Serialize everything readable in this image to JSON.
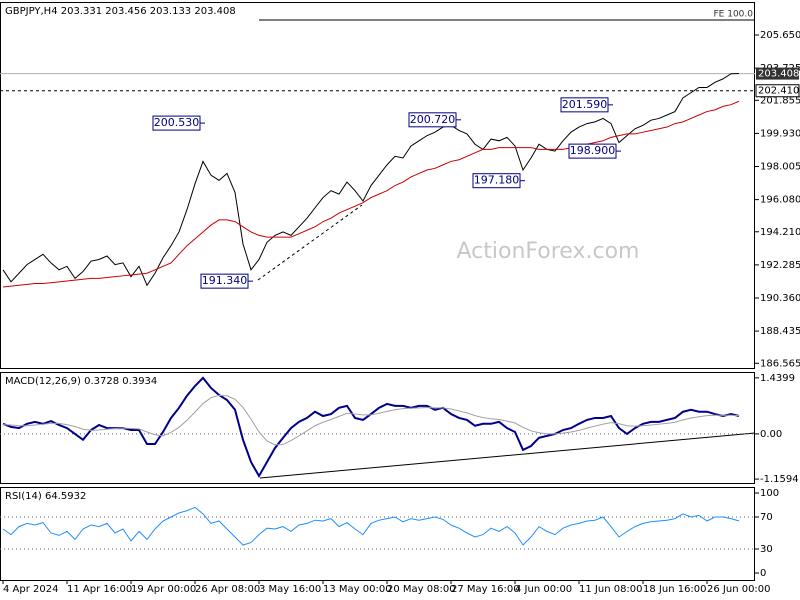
{
  "chart_data": [
    {
      "type": "line",
      "title": "GBPJPY,H4  203.331 203.456 203.133 203.408",
      "watermark": "ActionForex.com",
      "ylim": [
        186.29,
        207.57
      ],
      "yticks": [
        {
          "value": 205.65,
          "label": "205.650"
        },
        {
          "value": 203.725,
          "label": "203.725"
        },
        201.855,
        {
          "value": 199.93,
          "label": "199.930"
        },
        198.005,
        {
          "value": 196.08,
          "label": "196.080"
        },
        {
          "value": 194.21,
          "label": "194.210"
        },
        192.285,
        {
          "value": 190.36,
          "label": "190.360"
        },
        188.435,
        186.565
      ],
      "series": [
        {
          "color": "#000000",
          "values": [
            192.0,
            191.3,
            191.8,
            192.3,
            192.6,
            192.9,
            192.4,
            192.0,
            192.2,
            191.5,
            191.9,
            192.5,
            192.6,
            192.8,
            192.3,
            192.4,
            191.6,
            192.2,
            191.1,
            191.8,
            192.7,
            193.4,
            194.2,
            195.5,
            197.0,
            198.3,
            197.5,
            197.2,
            197.6,
            196.5,
            193.5,
            192.0,
            192.6,
            193.6,
            194.0,
            194.2,
            194.0,
            194.5,
            195.0,
            195.6,
            196.2,
            196.6,
            196.4,
            197.1,
            196.6,
            196.0,
            196.9,
            197.5,
            198.1,
            198.6,
            198.5,
            199.2,
            199.5,
            199.8,
            200.0,
            200.3,
            200.4,
            200.1,
            199.9,
            199.3,
            199.0,
            199.6,
            199.5,
            199.7,
            199.2,
            197.8,
            198.5,
            199.3,
            199.0,
            198.9,
            199.5,
            200.0,
            200.3,
            200.5,
            200.6,
            200.8,
            200.5,
            199.4,
            199.8,
            200.2,
            200.4,
            200.7,
            200.8,
            201.0,
            201.2,
            202.0,
            202.3,
            202.6,
            202.6,
            202.9,
            203.1,
            203.4,
            203.41
          ]
        },
        {
          "color": "#cc0000",
          "values": [
            191.0,
            191.05,
            191.1,
            191.15,
            191.2,
            191.2,
            191.25,
            191.3,
            191.35,
            191.4,
            191.45,
            191.5,
            191.5,
            191.55,
            191.6,
            191.65,
            191.7,
            191.75,
            191.8,
            192.0,
            192.2,
            192.4,
            192.9,
            193.4,
            193.8,
            194.2,
            194.6,
            194.9,
            194.9,
            194.8,
            194.5,
            194.2,
            194.0,
            193.9,
            193.9,
            193.9,
            193.9,
            194.1,
            194.3,
            194.5,
            194.8,
            195.0,
            195.3,
            195.5,
            195.7,
            195.9,
            196.2,
            196.4,
            196.6,
            196.9,
            197.1,
            197.4,
            197.6,
            197.8,
            197.9,
            198.1,
            198.3,
            198.4,
            198.6,
            198.8,
            199.0,
            199.0,
            199.1,
            199.1,
            199.1,
            199.1,
            199.1,
            199.0,
            199.0,
            199.0,
            199.0,
            199.1,
            199.2,
            199.3,
            199.4,
            199.5,
            199.7,
            199.8,
            199.9,
            199.9,
            200.0,
            200.1,
            200.2,
            200.3,
            200.5,
            200.6,
            200.8,
            201.0,
            201.2,
            201.3,
            201.5,
            201.6,
            201.8
          ]
        }
      ],
      "levels": [
        {
          "value": 206.52,
          "label": "FE 100.0",
          "style": "fe",
          "from_index": 32
        },
        {
          "value": 203.408,
          "label": "203.408",
          "style": "current"
        },
        {
          "value": 202.41,
          "label": "202.410",
          "style": "dashed"
        }
      ],
      "annotations": [
        {
          "label": "200.530",
          "value": 200.53,
          "index": 25
        },
        {
          "label": "191.340",
          "value": 191.34,
          "index": 31
        },
        {
          "label": "200.720",
          "value": 200.72,
          "index": 57
        },
        {
          "label": "197.180",
          "value": 197.18,
          "index": 65
        },
        {
          "label": "201.590",
          "value": 201.59,
          "index": 76
        },
        {
          "label": "198.900",
          "value": 198.9,
          "index": 77
        }
      ]
    },
    {
      "type": "line",
      "title": "MACD(12,26,9) 0.3728 0.3934",
      "ylim": [
        -1.26,
        1.59
      ],
      "yticks": [
        1.4399,
        {
          "value": 0,
          "label": "0.00"
        },
        -1.1594
      ],
      "levels": [
        0
      ],
      "series": [
        {
          "color": "#00008b",
          "values": [
            0.26,
            0.18,
            0.15,
            0.26,
            0.31,
            0.26,
            0.33,
            0.23,
            0.15,
            0,
            -0.15,
            0.1,
            0.23,
            0.15,
            0.15,
            0.15,
            0.1,
            0.1,
            -0.26,
            -0.26,
            0.05,
            0.41,
            0.67,
            0.98,
            1.23,
            1.44,
            1.18,
            1.0,
            0.87,
            0.62,
            -0.15,
            -0.72,
            -1.08,
            -0.72,
            -0.36,
            -0.1,
            0.15,
            0.31,
            0.41,
            0.57,
            0.46,
            0.51,
            0.67,
            0.72,
            0.41,
            0.36,
            0.51,
            0.67,
            0.77,
            0.72,
            0.72,
            0.67,
            0.72,
            0.72,
            0.62,
            0.67,
            0.51,
            0.41,
            0.36,
            0.21,
            0.26,
            0.26,
            0.31,
            0.15,
            0.05,
            -0.41,
            -0.31,
            -0.1,
            -0.05,
            0,
            0.1,
            0.15,
            0.26,
            0.36,
            0.41,
            0.41,
            0.46,
            0.15,
            0,
            0.15,
            0.26,
            0.31,
            0.31,
            0.36,
            0.41,
            0.57,
            0.62,
            0.57,
            0.57,
            0.51,
            0.46,
            0.51,
            0.46
          ]
        },
        {
          "color": "#a0a0a0",
          "values": [
            0.24,
            0.23,
            0.21,
            0.21,
            0.23,
            0.25,
            0.27,
            0.27,
            0.24,
            0.19,
            0.12,
            0.09,
            0.1,
            0.12,
            0.14,
            0.15,
            0.14,
            0.13,
            0.05,
            -0.02,
            -0.05,
            0.04,
            0.17,
            0.35,
            0.56,
            0.78,
            0.93,
            0.99,
            0.98,
            0.89,
            0.68,
            0.38,
            0.05,
            -0.18,
            -0.28,
            -0.27,
            -0.17,
            -0.05,
            0.08,
            0.21,
            0.3,
            0.37,
            0.45,
            0.53,
            0.51,
            0.49,
            0.49,
            0.53,
            0.58,
            0.62,
            0.65,
            0.66,
            0.67,
            0.68,
            0.67,
            0.67,
            0.64,
            0.59,
            0.54,
            0.47,
            0.42,
            0.39,
            0.37,
            0.33,
            0.28,
            0.17,
            0.08,
            0.03,
            0.0,
            0.0,
            0.02,
            0.05,
            0.09,
            0.15,
            0.2,
            0.25,
            0.29,
            0.26,
            0.21,
            0.2,
            0.21,
            0.23,
            0.25,
            0.27,
            0.3,
            0.36,
            0.41,
            0.44,
            0.47,
            0.48,
            0.48,
            0.48,
            0.47
          ]
        }
      ]
    },
    {
      "type": "line",
      "title": "RSI(14) 64.5932",
      "ylim": [
        -8.75,
        107.5
      ],
      "yticks": [
        100,
        70,
        30,
        0
      ],
      "levels": [
        70,
        30
      ],
      "series": [
        {
          "color": "#1e90ff",
          "values": [
            55,
            48,
            58,
            62,
            60,
            63,
            50,
            47,
            52,
            42,
            55,
            60,
            58,
            62,
            50,
            55,
            40,
            52,
            42,
            55,
            65,
            70,
            75,
            78,
            82,
            74,
            62,
            65,
            55,
            45,
            35,
            38,
            48,
            56,
            55,
            58,
            52,
            60,
            62,
            66,
            65,
            68,
            58,
            63,
            55,
            48,
            62,
            66,
            68,
            70,
            64,
            68,
            66,
            68,
            70,
            67,
            60,
            56,
            50,
            45,
            48,
            56,
            52,
            58,
            50,
            35,
            45,
            58,
            52,
            48,
            56,
            60,
            62,
            65,
            66,
            70,
            58,
            45,
            52,
            58,
            62,
            64,
            65,
            66,
            68,
            74,
            70,
            72,
            65,
            70,
            70,
            68,
            65
          ]
        }
      ],
      "categories": [
        "4 Apr 2024",
        null,
        null,
        null,
        null,
        null,
        null,
        null,
        "11 Apr 16:00",
        null,
        null,
        null,
        null,
        null,
        null,
        null,
        "19 Apr 00:00",
        null,
        null,
        null,
        null,
        null,
        null,
        null,
        "26 Apr 08:00",
        null,
        null,
        null,
        null,
        null,
        null,
        null,
        "3 May 16:00",
        null,
        null,
        null,
        null,
        null,
        null,
        null,
        "13 May 00:00",
        null,
        null,
        null,
        null,
        null,
        null,
        null,
        "20 May 08:00",
        null,
        null,
        null,
        null,
        null,
        null,
        null,
        "27 May 16:00",
        null,
        null,
        null,
        null,
        null,
        null,
        null,
        "4 Jun 00:00",
        null,
        null,
        null,
        null,
        null,
        null,
        null,
        "11 Jun 08:00",
        null,
        null,
        null,
        null,
        null,
        null,
        null,
        "18 Jun 16:00",
        null,
        null,
        null,
        null,
        null,
        null,
        null,
        "26 Jun 00:00",
        null,
        null,
        null,
        null
      ]
    }
  ]
}
